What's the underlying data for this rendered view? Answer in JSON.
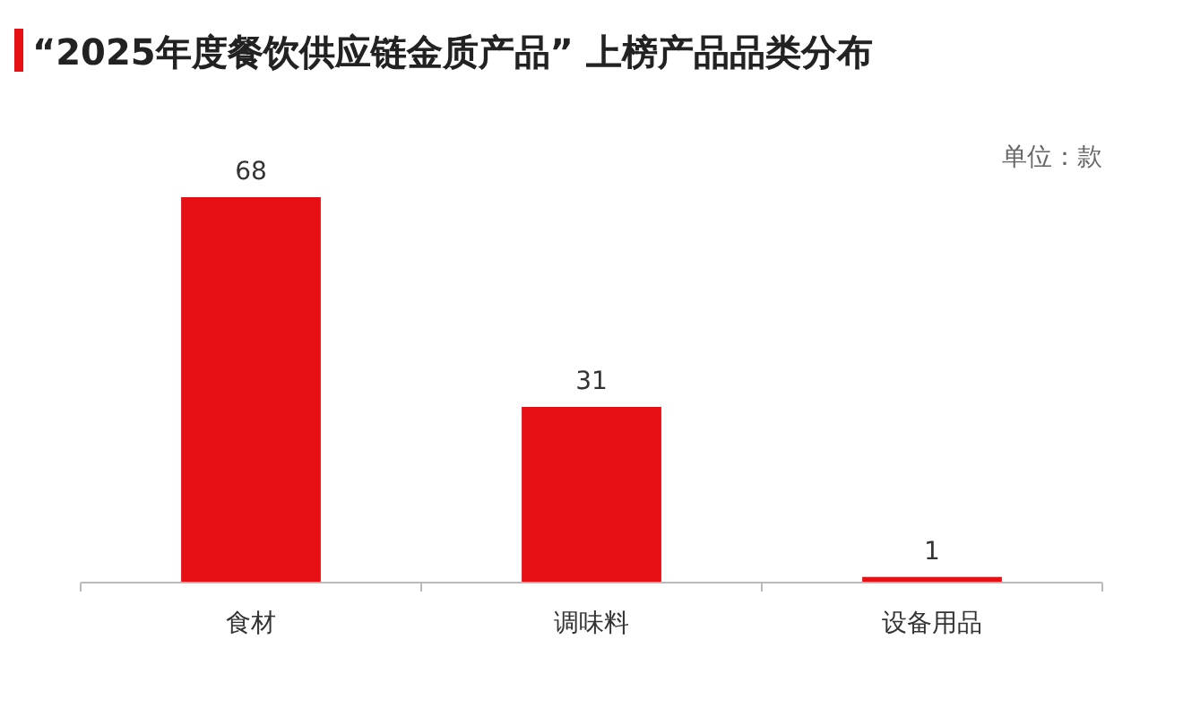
{
  "chart_data": {
    "type": "bar",
    "title": "“2025年度餐饮供应链金质产品” 上榜产品品类分布",
    "annotations": [
      "单位：款"
    ],
    "categories": [
      "食材",
      "调味料",
      "设备用品"
    ],
    "values": [
      68,
      31,
      1
    ],
    "color": "#e60f14",
    "data_labels": true
  }
}
